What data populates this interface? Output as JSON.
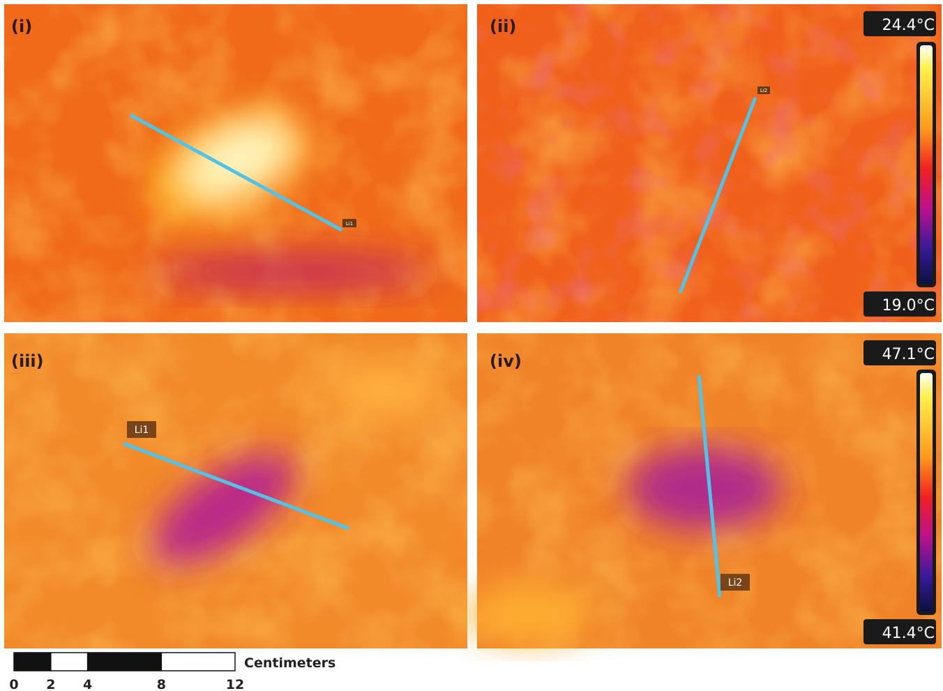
{
  "panels": [
    {
      "label": "(i)",
      "line_label": "Li1"
    },
    {
      "label": "(ii)",
      "line_label": "Li2",
      "scale": {
        "max": "24.4°C",
        "min": "19.0°C"
      }
    },
    {
      "label": "(iii)",
      "line_label": "Li1"
    },
    {
      "label": "(iv)",
      "line_label": "Li2",
      "scale": {
        "max": "47.1°C",
        "min": "41.4°C"
      }
    }
  ],
  "scale_bar": {
    "unit": "Centimeters",
    "ticks": [
      0,
      2,
      4,
      8,
      12
    ]
  }
}
